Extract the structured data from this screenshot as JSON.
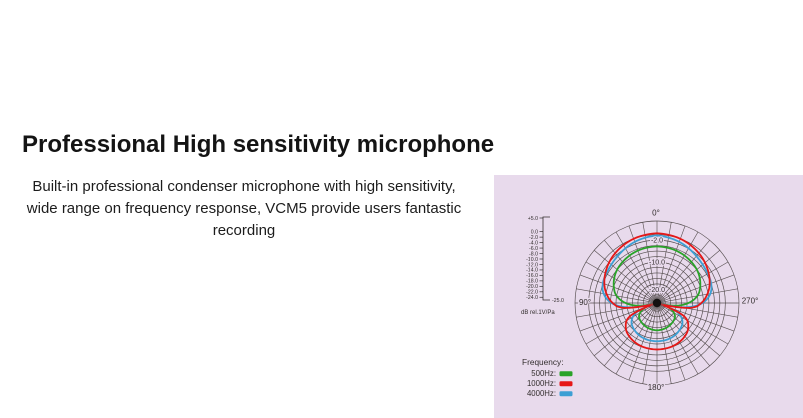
{
  "header": {
    "title": "Professional High sensitivity microphone"
  },
  "description": {
    "lines": [
      "Built-in professional condenser microphone with high sensitivity,",
      "wide range on frequency response, VCM5 provide users fantastic",
      "recording"
    ]
  },
  "chart_data": {
    "type": "polar",
    "subject": "microphone-polar-pattern",
    "background": "#e8daec",
    "grid_color": "#4b4343",
    "text_color": "#332e2e",
    "db_axis": {
      "min": -25,
      "max": 5,
      "unit": "dB rel.1V/Pa",
      "end_label": "-25.0",
      "ticks": [
        {
          "label": "+5.0",
          "db": 5
        },
        {
          "label": "0.0",
          "db": 0
        },
        {
          "label": "-2.0",
          "db": -2
        },
        {
          "label": "-4.0",
          "db": -4
        },
        {
          "label": "-6.0",
          "db": -6
        },
        {
          "label": "-8.0",
          "db": -8
        },
        {
          "label": "-10.0",
          "db": -10
        },
        {
          "label": "-12.0",
          "db": -12
        },
        {
          "label": "-14.0",
          "db": -14
        },
        {
          "label": "-16.0",
          "db": -16
        },
        {
          "label": "-18.0",
          "db": -18
        },
        {
          "label": "-20.0",
          "db": -20
        },
        {
          "label": "-22.0",
          "db": -22
        },
        {
          "label": "-24.0",
          "db": -24
        }
      ]
    },
    "grid": {
      "ring_dbs": [
        5,
        0,
        -2,
        -4,
        -6,
        -8,
        -10,
        -12,
        -14,
        -16,
        -18,
        -20,
        -22,
        -24
      ],
      "spoke_step_deg": 10
    },
    "ring_labels": [
      {
        "label": "-2.0",
        "db": -2
      },
      {
        "label": "-10.0",
        "db": -10
      },
      {
        "label": "-20.0",
        "db": -20
      }
    ],
    "angle_labels": [
      {
        "label": "0°",
        "angle": 0
      },
      {
        "label": "90°",
        "angle": 90
      },
      {
        "label": "270°",
        "angle": 270
      },
      {
        "label": "180°",
        "angle": 180
      }
    ],
    "legend": {
      "title": "Frequency:",
      "items": [
        {
          "label": "500Hz:",
          "color": "#29a329"
        },
        {
          "label": "1000Hz:",
          "color": "#e61717"
        },
        {
          "label": "4000Hz:",
          "color": "#3c9fd4"
        }
      ]
    },
    "series": [
      {
        "name": "500Hz",
        "color": "#29a329",
        "symmetric_mirror": true,
        "points_deg_db": [
          [
            0,
            -4.3
          ],
          [
            20,
            -4.6
          ],
          [
            40,
            -5.4
          ],
          [
            55,
            -6.4
          ],
          [
            70,
            -8.2
          ],
          [
            80,
            -10
          ],
          [
            90,
            -13.5
          ],
          [
            98,
            -18
          ],
          [
            105,
            -24
          ],
          [
            112,
            -20
          ],
          [
            125,
            -17
          ],
          [
            140,
            -16
          ],
          [
            160,
            -15.3
          ],
          [
            180,
            -15
          ]
        ]
      },
      {
        "name": "4000Hz",
        "color": "#3c9fd4",
        "symmetric_mirror": true,
        "points_deg_db": [
          [
            0,
            -0.3
          ],
          [
            20,
            -1.2
          ],
          [
            40,
            -2.6
          ],
          [
            55,
            -3.4
          ],
          [
            68,
            -3.8
          ],
          [
            78,
            -4.8
          ],
          [
            86,
            -6.8
          ],
          [
            93,
            -10
          ],
          [
            100,
            -16
          ],
          [
            106,
            -24
          ],
          [
            114,
            -17
          ],
          [
            126,
            -13.5
          ],
          [
            142,
            -12
          ],
          [
            160,
            -11.2
          ],
          [
            180,
            -11
          ]
        ]
      },
      {
        "name": "1000Hz",
        "color": "#e61717",
        "symmetric_mirror": true,
        "points_deg_db": [
          [
            0,
            0.5
          ],
          [
            20,
            0
          ],
          [
            40,
            -1.2
          ],
          [
            55,
            -2.6
          ],
          [
            70,
            -4.5
          ],
          [
            80,
            -6.3
          ],
          [
            90,
            -8.8
          ],
          [
            98,
            -12.5
          ],
          [
            107,
            -24
          ],
          [
            116,
            -14
          ],
          [
            128,
            -10.5
          ],
          [
            142,
            -9
          ],
          [
            160,
            -8.2
          ],
          [
            180,
            -8
          ]
        ]
      }
    ]
  }
}
